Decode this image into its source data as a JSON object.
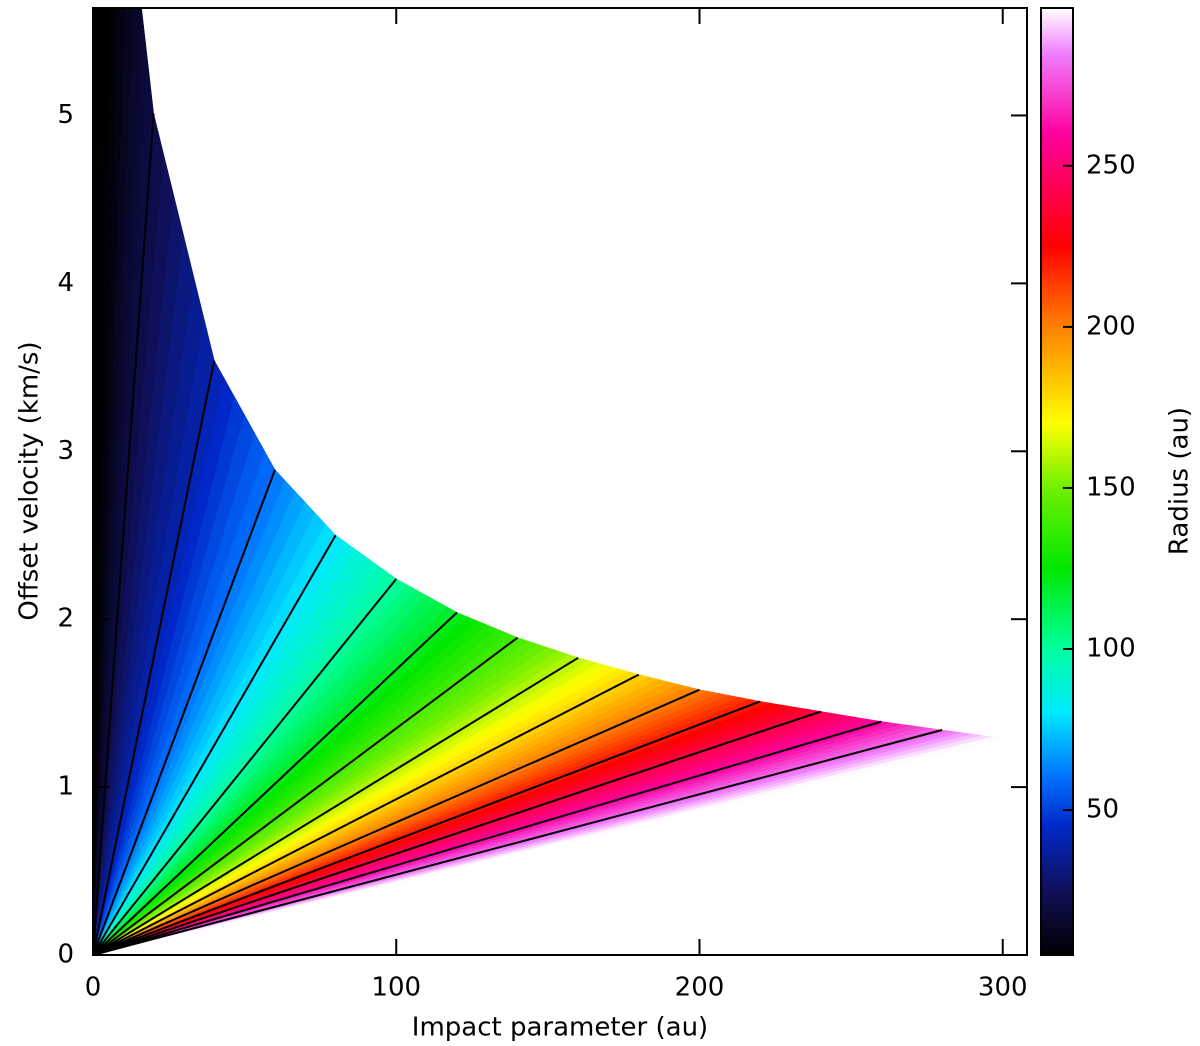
{
  "chart_data": {
    "type": "heatmap",
    "xlabel": "Impact parameter (au)",
    "ylabel": "Offset velocity (km/s)",
    "colorbar_label": "Radius (au)",
    "xlim": [
      0,
      308
    ],
    "ylim": [
      0,
      5.64
    ],
    "xticks": [
      0,
      100,
      200,
      300
    ],
    "yticks": [
      0,
      1,
      2,
      3,
      4,
      5
    ],
    "clim": [
      5,
      299
    ],
    "cticks": [
      50,
      100,
      150,
      200,
      250
    ],
    "colormap": [
      {
        "value": 5,
        "color": "#000000"
      },
      {
        "value": 25,
        "color": "#10105a"
      },
      {
        "value": 45,
        "color": "#0028c8"
      },
      {
        "value": 60,
        "color": "#0070ff"
      },
      {
        "value": 80,
        "color": "#00e8ff"
      },
      {
        "value": 100,
        "color": "#00ffa0"
      },
      {
        "value": 125,
        "color": "#00e800"
      },
      {
        "value": 150,
        "color": "#70f000"
      },
      {
        "value": 170,
        "color": "#ffff00"
      },
      {
        "value": 200,
        "color": "#ff8000"
      },
      {
        "value": 225,
        "color": "#ff0000"
      },
      {
        "value": 260,
        "color": "#ff00a0"
      },
      {
        "value": 285,
        "color": "#f080ff"
      },
      {
        "value": 299,
        "color": "#ffffff"
      }
    ],
    "envelope": {
      "x": [
        0,
        16,
        20,
        40,
        60,
        80,
        100,
        120,
        140,
        160,
        180,
        200,
        220,
        240,
        260,
        280,
        300
      ],
      "y": [
        5.64,
        5.64,
        5.01,
        3.54,
        2.89,
        2.5,
        2.24,
        2.04,
        1.89,
        1.77,
        1.67,
        1.58,
        1.51,
        1.45,
        1.39,
        1.34,
        1.29
      ]
    },
    "contours": {
      "radius": [
        20,
        40,
        60,
        80,
        100,
        120,
        140,
        160,
        180,
        200,
        220,
        240,
        260,
        280
      ],
      "velocity": [
        5.01,
        3.54,
        2.89,
        2.5,
        2.24,
        2.04,
        1.89,
        1.77,
        1.67,
        1.58,
        1.51,
        1.45,
        1.39,
        1.34
      ],
      "color": "#000000"
    }
  }
}
